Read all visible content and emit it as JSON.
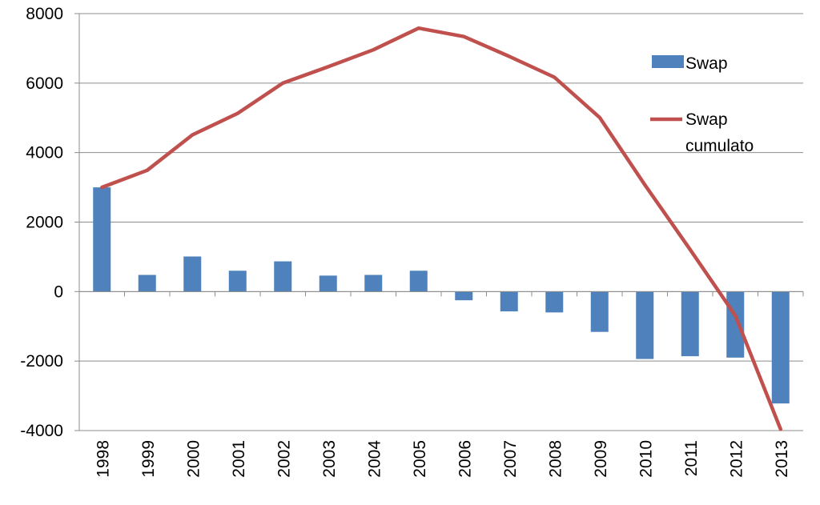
{
  "chart_data": {
    "type": "bar",
    "title": "",
    "xlabel": "",
    "ylabel": "",
    "categories": [
      "1998",
      "1999",
      "2000",
      "2001",
      "2002",
      "2003",
      "2004",
      "2005",
      "2006",
      "2007",
      "2008",
      "2009",
      "2010",
      "2011",
      "2012",
      "2013"
    ],
    "ylim": [
      -4000,
      8000
    ],
    "yticks": [
      "8000",
      "6000",
      "4000",
      "2000",
      "0",
      "-2000",
      "-4000"
    ],
    "grid": true,
    "legend_position": "right",
    "series": [
      {
        "name": "Swap",
        "kind": "bar",
        "color": "#4F81BD",
        "values": [
          3000,
          480,
          1010,
          600,
          870,
          460,
          480,
          600,
          -250,
          -570,
          -600,
          -1160,
          -1940,
          -1860,
          -1900,
          -3220
        ]
      },
      {
        "name": "Swap cumulato",
        "legend_lines": [
          "Swap",
          "cumulato"
        ],
        "kind": "line",
        "color": "#C0504D",
        "values": [
          3000,
          3490,
          4510,
          5130,
          6000,
          6470,
          6960,
          7580,
          7340,
          6770,
          6170,
          5010,
          3070,
          1210,
          -690,
          -3960
        ]
      }
    ]
  }
}
